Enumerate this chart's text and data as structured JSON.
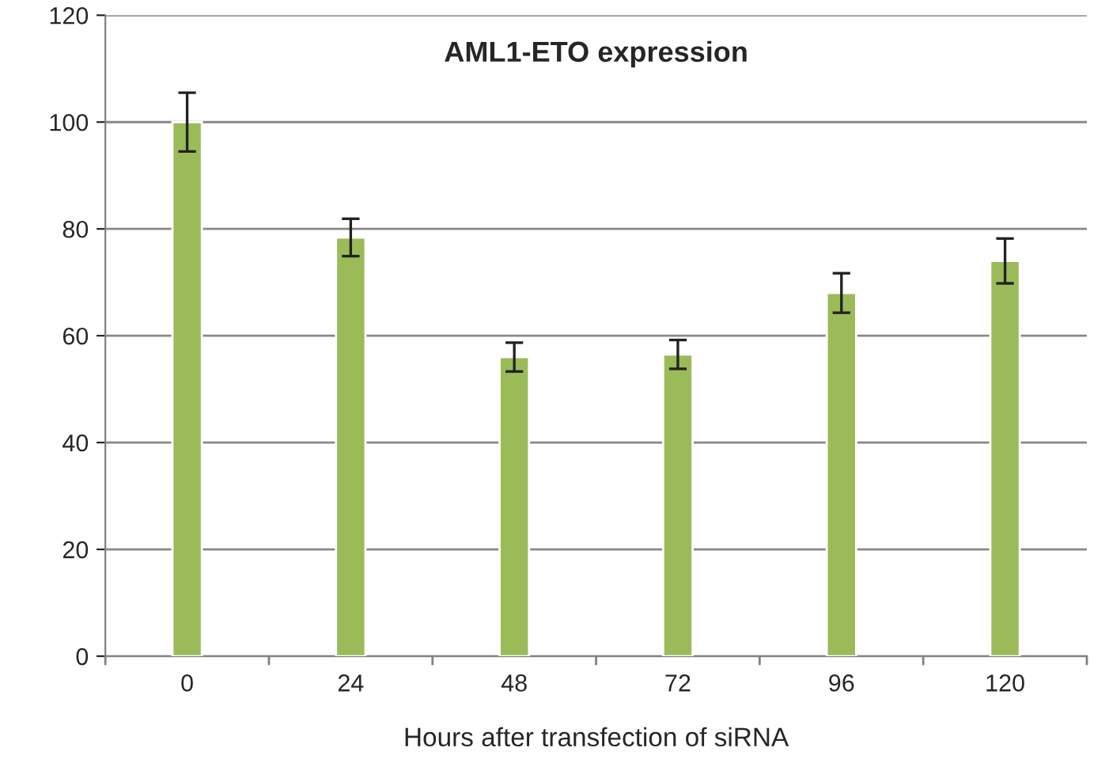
{
  "chart_data": {
    "type": "bar",
    "title": "AML1-ETO expression",
    "xlabel": "Hours after transfection of siRNA",
    "categories": [
      "0",
      "24",
      "48",
      "72",
      "96",
      "120"
    ],
    "values": [
      100,
      78.4,
      56,
      56.5,
      68,
      74
    ],
    "errors": [
      5.5,
      3.5,
      2.7,
      2.7,
      3.7,
      4.2
    ],
    "color": "#9bbb59",
    "ylim": [
      0,
      120
    ],
    "yticks": [
      0,
      20,
      40,
      60,
      80,
      100,
      120
    ],
    "grid": "y"
  }
}
